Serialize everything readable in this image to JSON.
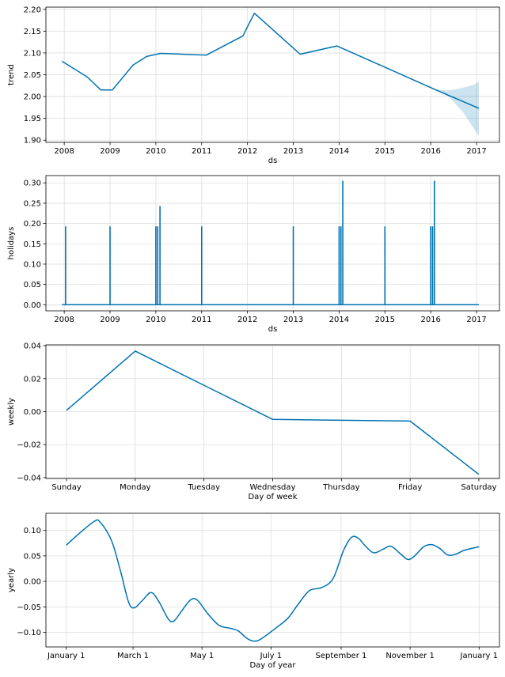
{
  "colors": {
    "line": "#0072B2",
    "band": "#0072B2",
    "grid": "#dddddd",
    "axis": "#000000"
  },
  "chart_data": [
    {
      "id": "trend",
      "type": "line",
      "xlabel": "ds",
      "ylabel": "trend",
      "x_axis_kind": "year",
      "xlim": [
        2007.6,
        2017.5
      ],
      "ylim": [
        1.895,
        2.205
      ],
      "xticks": [
        2008,
        2009,
        2010,
        2011,
        2012,
        2013,
        2014,
        2015,
        2016,
        2017
      ],
      "xtick_labels": [
        "2008",
        "2009",
        "2010",
        "2011",
        "2012",
        "2013",
        "2014",
        "2015",
        "2016",
        "2017"
      ],
      "yticks": [
        1.9,
        1.95,
        2.0,
        2.05,
        2.1,
        2.15,
        2.2
      ],
      "ytick_labels": [
        "1.90",
        "1.95",
        "2.00",
        "2.05",
        "2.10",
        "2.15",
        "2.20"
      ],
      "grid": true,
      "series": [
        {
          "points": [
            [
              2007.95,
              2.081
            ],
            [
              2008.5,
              2.045
            ],
            [
              2008.8,
              2.015
            ],
            [
              2009.05,
              2.015
            ],
            [
              2009.5,
              2.072
            ],
            [
              2009.8,
              2.092
            ],
            [
              2010.1,
              2.099
            ],
            [
              2011.1,
              2.095
            ],
            [
              2011.9,
              2.139
            ],
            [
              2012.15,
              2.191
            ],
            [
              2013.15,
              2.097
            ],
            [
              2013.95,
              2.116
            ],
            [
              2016.1,
              2.016
            ],
            [
              2017.05,
              1.973
            ]
          ]
        }
      ],
      "uncertainty": {
        "upper": [
          [
            2016.1,
            2.016
          ],
          [
            2016.4,
            2.014
          ],
          [
            2016.7,
            2.02
          ],
          [
            2016.95,
            2.027
          ],
          [
            2017.05,
            2.035
          ]
        ],
        "lower": [
          [
            2016.1,
            2.016
          ],
          [
            2016.4,
            1.999
          ],
          [
            2016.7,
            1.965
          ],
          [
            2016.95,
            1.925
          ],
          [
            2017.05,
            1.91
          ]
        ]
      }
    },
    {
      "id": "holidays",
      "type": "line",
      "xlabel": "ds",
      "ylabel": "holidays",
      "x_axis_kind": "year",
      "xlim": [
        2007.6,
        2017.5
      ],
      "ylim": [
        -0.015,
        0.318
      ],
      "xticks": [
        2008,
        2009,
        2010,
        2011,
        2012,
        2013,
        2014,
        2015,
        2016,
        2017
      ],
      "xtick_labels": [
        "2008",
        "2009",
        "2010",
        "2011",
        "2012",
        "2013",
        "2014",
        "2015",
        "2016",
        "2017"
      ],
      "yticks": [
        0.0,
        0.05,
        0.1,
        0.15,
        0.2,
        0.25,
        0.3
      ],
      "ytick_labels": [
        "0.00",
        "0.05",
        "0.10",
        "0.15",
        "0.20",
        "0.25",
        "0.30"
      ],
      "grid": true,
      "baseline": 0.0,
      "x_range": [
        2007.95,
        2017.05
      ],
      "spikes": [
        {
          "x": 2008.03,
          "y": 0.193
        },
        {
          "x": 2009.0,
          "y": 0.193
        },
        {
          "x": 2010.0,
          "y": 0.193
        },
        {
          "x": 2010.04,
          "y": 0.193
        },
        {
          "x": 2010.09,
          "y": 0.243
        },
        {
          "x": 2011.0,
          "y": 0.193
        },
        {
          "x": 2013.0,
          "y": 0.193
        },
        {
          "x": 2014.0,
          "y": 0.193
        },
        {
          "x": 2014.04,
          "y": 0.193
        },
        {
          "x": 2014.08,
          "y": 0.305
        },
        {
          "x": 2015.0,
          "y": 0.193
        },
        {
          "x": 2016.0,
          "y": 0.193
        },
        {
          "x": 2016.04,
          "y": 0.193
        },
        {
          "x": 2016.08,
          "y": 0.305
        }
      ]
    },
    {
      "id": "weekly",
      "type": "line",
      "xlabel": "Day of week",
      "ylabel": "weekly",
      "x_axis_kind": "category",
      "xlim": [
        -0.3,
        6.3
      ],
      "ylim": [
        -0.0405,
        0.0405
      ],
      "xticks": [
        0,
        1,
        2,
        3,
        4,
        5,
        6
      ],
      "xtick_labels": [
        "Sunday",
        "Monday",
        "Tuesday",
        "Wednesday",
        "Thursday",
        "Friday",
        "Saturday"
      ],
      "yticks": [
        -0.04,
        -0.02,
        0.0,
        0.02,
        0.04
      ],
      "ytick_labels": [
        "−0.04",
        "−0.02",
        "0.00",
        "0.02",
        "0.04"
      ],
      "grid": true,
      "series": [
        {
          "points": [
            [
              0,
              0.0008
            ],
            [
              1,
              0.0367
            ],
            [
              2,
              0.016
            ],
            [
              3,
              -0.0047
            ],
            [
              4,
              -0.0052
            ],
            [
              5,
              -0.0057
            ],
            [
              6,
              -0.038
            ]
          ]
        }
      ]
    },
    {
      "id": "yearly",
      "type": "line",
      "xlabel": "Day of year",
      "ylabel": "yearly",
      "x_axis_kind": "day_of_year",
      "xlim": [
        -18,
        383
      ],
      "ylim": [
        -0.1285,
        0.1335
      ],
      "xticks": [
        0,
        59,
        120,
        181,
        243,
        304,
        365
      ],
      "xtick_labels": [
        "January 1",
        "March 1",
        "May 1",
        "July 1",
        "September 1",
        "November 1",
        "January 1"
      ],
      "yticks": [
        -0.1,
        -0.05,
        0.0,
        0.05,
        0.1
      ],
      "ytick_labels": [
        "−0.10",
        "−0.05",
        "0.00",
        "0.05",
        "0.10"
      ],
      "grid": true,
      "smooth": true,
      "series": [
        {
          "points": [
            [
              0,
              0.071
            ],
            [
              12,
              0.095
            ],
            [
              25,
              0.118
            ],
            [
              30,
              0.116
            ],
            [
              40,
              0.08
            ],
            [
              48,
              0.02
            ],
            [
              55,
              -0.04
            ],
            [
              60,
              -0.052
            ],
            [
              67,
              -0.038
            ],
            [
              75,
              -0.022
            ],
            [
              82,
              -0.04
            ],
            [
              90,
              -0.073
            ],
            [
              95,
              -0.078
            ],
            [
              102,
              -0.058
            ],
            [
              110,
              -0.036
            ],
            [
              116,
              -0.037
            ],
            [
              125,
              -0.063
            ],
            [
              135,
              -0.086
            ],
            [
              145,
              -0.092
            ],
            [
              152,
              -0.097
            ],
            [
              160,
              -0.112
            ],
            [
              166,
              -0.117
            ],
            [
              172,
              -0.113
            ],
            [
              185,
              -0.092
            ],
            [
              196,
              -0.072
            ],
            [
              205,
              -0.045
            ],
            [
              215,
              -0.018
            ],
            [
              226,
              -0.012
            ],
            [
              236,
              0.006
            ],
            [
              245,
              0.06
            ],
            [
              252,
              0.086
            ],
            [
              258,
              0.085
            ],
            [
              265,
              0.068
            ],
            [
              272,
              0.056
            ],
            [
              280,
              0.063
            ],
            [
              287,
              0.069
            ],
            [
              295,
              0.055
            ],
            [
              302,
              0.043
            ],
            [
              308,
              0.05
            ],
            [
              316,
              0.068
            ],
            [
              323,
              0.072
            ],
            [
              330,
              0.065
            ],
            [
              337,
              0.052
            ],
            [
              344,
              0.053
            ],
            [
              352,
              0.061
            ],
            [
              365,
              0.068
            ]
          ]
        }
      ]
    }
  ]
}
